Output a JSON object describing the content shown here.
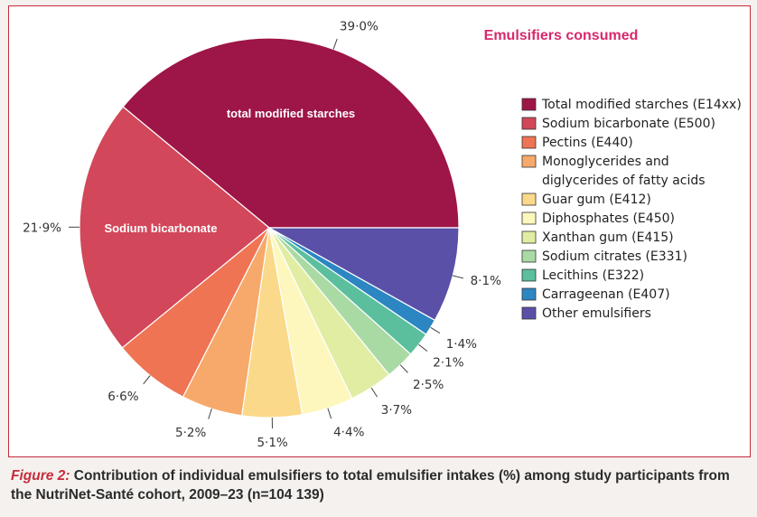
{
  "chart_data": {
    "type": "pie",
    "title": "Emulsifiers consumed",
    "categories": [
      "Total modified starches (E14xx)",
      "Sodium bicarbonate (E500)",
      "Pectins (E440)",
      "Monoglycerides and diglycerides of fatty acids",
      "Guar gum (E412)",
      "Diphosphates (E450)",
      "Xanthan gum (E415)",
      "Sodium citrates (E331)",
      "Lecithins (E322)",
      "Carrageenan (E407)",
      "Other emulsifiers"
    ],
    "values": [
      39.0,
      21.9,
      6.6,
      5.2,
      5.1,
      4.4,
      3.7,
      2.5,
      2.1,
      1.4,
      8.1
    ],
    "value_labels": [
      "39·0%",
      "21·9%",
      "6·6%",
      "5·2%",
      "5·1%",
      "4·4%",
      "3·7%",
      "2·5%",
      "2·1%",
      "1·4%",
      "8·1%"
    ],
    "colors": [
      "#9e1547",
      "#d2475a",
      "#ef7453",
      "#f6a96a",
      "#fbd98a",
      "#fdf7be",
      "#e0eda3",
      "#aadaa4",
      "#5bbf9d",
      "#2b86c2",
      "#5a50a8"
    ],
    "inside_labels": [
      "total modified starches",
      "Sodium bicarbonate"
    ],
    "legend_lines": [
      [
        "Total modified starches (E14xx)"
      ],
      [
        "Sodium bicarbonate (E500)"
      ],
      [
        "Pectins (E440)"
      ],
      [
        "Monoglycerides and",
        "diglycerides of fatty acids"
      ],
      [
        "Guar gum (E412)"
      ],
      [
        "Diphosphates (E450)"
      ],
      [
        "Xanthan gum (E415)"
      ],
      [
        "Sodium citrates (E331)"
      ],
      [
        "Lecithins (E322)"
      ],
      [
        "Carrageenan (E407)"
      ],
      [
        "Other emulsifiers"
      ]
    ],
    "legend_position": "right",
    "start_angle": "3 o'clock, counter-clockwise"
  },
  "caption": {
    "label": "Figure 2:",
    "text_before_n": " Contribution of individual emulsifiers to total emulsifier intakes (%) among study participants from the NutriNet-Santé cohort, 2009–23 (n=",
    "n_value": "104 139",
    "text_after_n": ")"
  }
}
